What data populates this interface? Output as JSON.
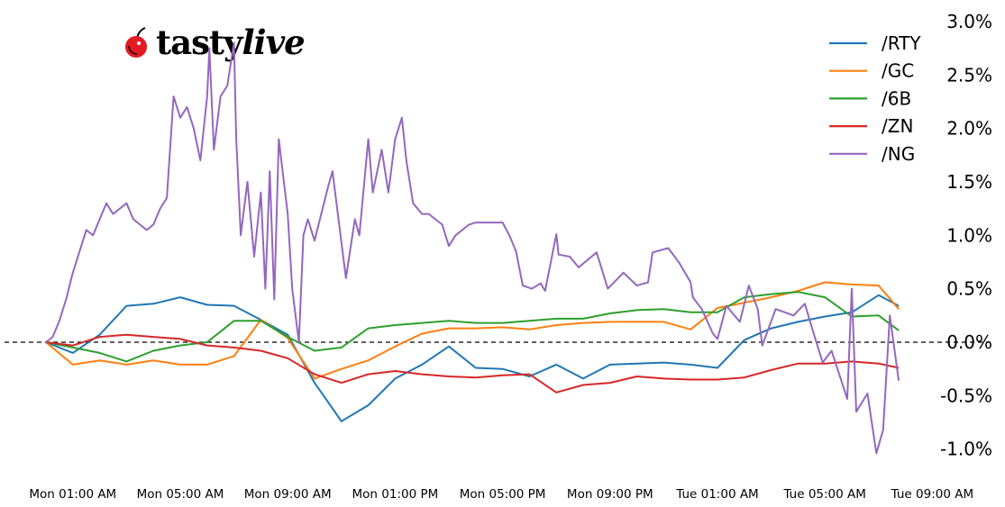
{
  "logo": {
    "text": "tastylive",
    "brand_color": "#e31b23"
  },
  "chart_data": {
    "type": "line",
    "title": "",
    "xlabel": "",
    "ylabel": "",
    "ylim": [
      -1.2,
      3.0
    ],
    "y_unit": "%",
    "grid": false,
    "legend_position": "top-right",
    "reference_line": {
      "value": 0.0,
      "style": "dashed",
      "color": "#000000"
    },
    "yticks": [
      {
        "value": 3.0,
        "label": "3.0%"
      },
      {
        "value": 2.5,
        "label": "2.5%"
      },
      {
        "value": 2.0,
        "label": "2.0%"
      },
      {
        "value": 1.5,
        "label": "1.5%"
      },
      {
        "value": 1.0,
        "label": "1.0%"
      },
      {
        "value": 0.5,
        "label": "0.5%"
      },
      {
        "value": 0.0,
        "label": "0.0%"
      },
      {
        "value": -0.5,
        "label": "-0.5%"
      },
      {
        "value": -1.0,
        "label": "-1.0%"
      }
    ],
    "xticks": [
      {
        "time": "Mon 01:00",
        "label": "Mon 01:00 AM"
      },
      {
        "time": "Mon 05:00",
        "label": "Mon 05:00 AM"
      },
      {
        "time": "Mon 09:00",
        "label": "Mon 09:00 AM"
      },
      {
        "time": "Mon 13:00",
        "label": "Mon 01:00 PM"
      },
      {
        "time": "Mon 17:00",
        "label": "Mon 05:00 PM"
      },
      {
        "time": "Mon 21:00",
        "label": "Mon 09:00 PM"
      },
      {
        "time": "Tue 01:00",
        "label": "Tue 01:00 AM"
      },
      {
        "time": "Tue 05:00",
        "label": "Tue 05:00 AM"
      },
      {
        "time": "Tue 09:00",
        "label": "Tue 09:00 AM"
      }
    ],
    "xlim": [
      "Mon 00:00",
      "Tue 09:00"
    ],
    "series": [
      {
        "name": "/RTY",
        "color": "#1f77b4",
        "points": [
          [
            "Mon 00:00",
            0
          ],
          [
            "Mon 01:00",
            -0.1
          ],
          [
            "Mon 02:00",
            0.07
          ],
          [
            "Mon 03:00",
            0.34
          ],
          [
            "Mon 04:00",
            0.36
          ],
          [
            "Mon 05:00",
            0.42
          ],
          [
            "Mon 06:00",
            0.35
          ],
          [
            "Mon 07:00",
            0.34
          ],
          [
            "Mon 08:00",
            0.21
          ],
          [
            "Mon 09:00",
            0.07
          ],
          [
            "Mon 10:00",
            -0.38
          ],
          [
            "Mon 11:00",
            -0.74
          ],
          [
            "Mon 12:00",
            -0.59
          ],
          [
            "Mon 13:00",
            -0.34
          ],
          [
            "Mon 14:00",
            -0.21
          ],
          [
            "Mon 15:00",
            -0.04
          ],
          [
            "Mon 16:00",
            -0.24
          ],
          [
            "Mon 17:00",
            -0.25
          ],
          [
            "Mon 18:00",
            -0.32
          ],
          [
            "Mon 19:00",
            -0.21
          ],
          [
            "Mon 20:00",
            -0.34
          ],
          [
            "Mon 21:00",
            -0.21
          ],
          [
            "Mon 22:00",
            -0.2
          ],
          [
            "Mon 23:00",
            -0.19
          ],
          [
            "Tue 00:00",
            -0.21
          ],
          [
            "Tue 01:00",
            -0.24
          ],
          [
            "Tue 02:00",
            0.02
          ],
          [
            "Tue 03:00",
            0.13
          ],
          [
            "Tue 04:00",
            0.19
          ],
          [
            "Tue 05:00",
            0.24
          ],
          [
            "Tue 06:00",
            0.28
          ],
          [
            "Tue 07:00",
            0.44
          ],
          [
            "Tue 07:45",
            0.34
          ]
        ]
      },
      {
        "name": "/GC",
        "color": "#ff7f0e",
        "points": [
          [
            "Mon 00:00",
            0
          ],
          [
            "Mon 01:00",
            -0.21
          ],
          [
            "Mon 02:00",
            -0.17
          ],
          [
            "Mon 03:00",
            -0.21
          ],
          [
            "Mon 04:00",
            -0.17
          ],
          [
            "Mon 05:00",
            -0.21
          ],
          [
            "Mon 06:00",
            -0.21
          ],
          [
            "Mon 07:00",
            -0.13
          ],
          [
            "Mon 08:00",
            0.21
          ],
          [
            "Mon 09:00",
            0.04
          ],
          [
            "Mon 10:00",
            -0.34
          ],
          [
            "Mon 11:00",
            -0.25
          ],
          [
            "Mon 12:00",
            -0.17
          ],
          [
            "Mon 13:00",
            -0.04
          ],
          [
            "Mon 14:00",
            0.08
          ],
          [
            "Mon 15:00",
            0.13
          ],
          [
            "Mon 16:00",
            0.13
          ],
          [
            "Mon 17:00",
            0.14
          ],
          [
            "Mon 18:00",
            0.12
          ],
          [
            "Mon 19:00",
            0.16
          ],
          [
            "Mon 20:00",
            0.18
          ],
          [
            "Mon 21:00",
            0.19
          ],
          [
            "Mon 22:00",
            0.19
          ],
          [
            "Mon 23:00",
            0.19
          ],
          [
            "Tue 00:00",
            0.12
          ],
          [
            "Tue 01:00",
            0.32
          ],
          [
            "Tue 02:00",
            0.37
          ],
          [
            "Tue 03:00",
            0.42
          ],
          [
            "Tue 04:00",
            0.48
          ],
          [
            "Tue 05:00",
            0.56
          ],
          [
            "Tue 06:00",
            0.54
          ],
          [
            "Tue 07:00",
            0.53
          ],
          [
            "Tue 07:45",
            0.31
          ]
        ]
      },
      {
        "name": "/6B",
        "color": "#2ca02c",
        "points": [
          [
            "Mon 00:00",
            0
          ],
          [
            "Mon 01:00",
            -0.05
          ],
          [
            "Mon 02:00",
            -0.1
          ],
          [
            "Mon 03:00",
            -0.18
          ],
          [
            "Mon 04:00",
            -0.08
          ],
          [
            "Mon 05:00",
            -0.03
          ],
          [
            "Mon 06:00",
            0.0
          ],
          [
            "Mon 07:00",
            0.2
          ],
          [
            "Mon 08:00",
            0.2
          ],
          [
            "Mon 09:00",
            0.05
          ],
          [
            "Mon 10:00",
            -0.08
          ],
          [
            "Mon 11:00",
            -0.05
          ],
          [
            "Mon 12:00",
            0.13
          ],
          [
            "Mon 13:00",
            0.16
          ],
          [
            "Mon 14:00",
            0.18
          ],
          [
            "Mon 15:00",
            0.2
          ],
          [
            "Mon 16:00",
            0.18
          ],
          [
            "Mon 17:00",
            0.18
          ],
          [
            "Mon 18:00",
            0.2
          ],
          [
            "Mon 19:00",
            0.22
          ],
          [
            "Mon 20:00",
            0.22
          ],
          [
            "Mon 21:00",
            0.27
          ],
          [
            "Mon 22:00",
            0.3
          ],
          [
            "Mon 23:00",
            0.31
          ],
          [
            "Tue 00:00",
            0.28
          ],
          [
            "Tue 01:00",
            0.28
          ],
          [
            "Tue 02:00",
            0.42
          ],
          [
            "Tue 03:00",
            0.45
          ],
          [
            "Tue 04:00",
            0.47
          ],
          [
            "Tue 05:00",
            0.42
          ],
          [
            "Tue 06:00",
            0.24
          ],
          [
            "Tue 07:00",
            0.25
          ],
          [
            "Tue 07:45",
            0.11
          ]
        ]
      },
      {
        "name": "/ZN",
        "color": "#d62728",
        "points": [
          [
            "Mon 00:00",
            0
          ],
          [
            "Mon 01:00",
            -0.03
          ],
          [
            "Mon 02:00",
            0.05
          ],
          [
            "Mon 03:00",
            0.07
          ],
          [
            "Mon 04:00",
            0.05
          ],
          [
            "Mon 05:00",
            0.03
          ],
          [
            "Mon 06:00",
            -0.03
          ],
          [
            "Mon 07:00",
            -0.05
          ],
          [
            "Mon 08:00",
            -0.08
          ],
          [
            "Mon 09:00",
            -0.15
          ],
          [
            "Mon 10:00",
            -0.3
          ],
          [
            "Mon 11:00",
            -0.38
          ],
          [
            "Mon 12:00",
            -0.3
          ],
          [
            "Mon 13:00",
            -0.27
          ],
          [
            "Mon 14:00",
            -0.3
          ],
          [
            "Mon 15:00",
            -0.32
          ],
          [
            "Mon 16:00",
            -0.33
          ],
          [
            "Mon 17:00",
            -0.31
          ],
          [
            "Mon 18:00",
            -0.3
          ],
          [
            "Mon 19:00",
            -0.47
          ],
          [
            "Mon 20:00",
            -0.4
          ],
          [
            "Mon 21:00",
            -0.38
          ],
          [
            "Mon 22:00",
            -0.32
          ],
          [
            "Mon 23:00",
            -0.34
          ],
          [
            "Tue 00:00",
            -0.35
          ],
          [
            "Tue 01:00",
            -0.35
          ],
          [
            "Tue 02:00",
            -0.33
          ],
          [
            "Tue 03:00",
            -0.26
          ],
          [
            "Tue 04:00",
            -0.2
          ],
          [
            "Tue 05:00",
            -0.2
          ],
          [
            "Tue 06:00",
            -0.18
          ],
          [
            "Tue 07:00",
            -0.2
          ],
          [
            "Tue 07:45",
            -0.24
          ]
        ]
      },
      {
        "name": "/NG",
        "color": "#9467bd",
        "points": [
          [
            "Mon 00:00",
            0
          ],
          [
            "Mon 00:15",
            0.05
          ],
          [
            "Mon 00:30",
            0.2
          ],
          [
            "Mon 00:45",
            0.4
          ],
          [
            "Mon 01:00",
            0.65
          ],
          [
            "Mon 01:15",
            0.85
          ],
          [
            "Mon 01:30",
            1.05
          ],
          [
            "Mon 01:45",
            1.0
          ],
          [
            "Mon 02:00",
            1.15
          ],
          [
            "Mon 02:15",
            1.3
          ],
          [
            "Mon 02:30",
            1.2
          ],
          [
            "Mon 02:45",
            1.25
          ],
          [
            "Mon 03:00",
            1.3
          ],
          [
            "Mon 03:15",
            1.15
          ],
          [
            "Mon 03:30",
            1.1
          ],
          [
            "Mon 03:45",
            1.05
          ],
          [
            "Mon 04:00",
            1.1
          ],
          [
            "Mon 04:15",
            1.25
          ],
          [
            "Mon 04:30",
            1.35
          ],
          [
            "Mon 04:45",
            2.3
          ],
          [
            "Mon 05:00",
            2.1
          ],
          [
            "Mon 05:15",
            2.2
          ],
          [
            "Mon 05:30",
            2.0
          ],
          [
            "Mon 05:45",
            1.7
          ],
          [
            "Mon 06:00",
            2.3
          ],
          [
            "Mon 06:05",
            2.75
          ],
          [
            "Mon 06:15",
            1.8
          ],
          [
            "Mon 06:30",
            2.3
          ],
          [
            "Mon 06:45",
            2.4
          ],
          [
            "Mon 07:00",
            2.8
          ],
          [
            "Mon 07:05",
            1.9
          ],
          [
            "Mon 07:15",
            1.0
          ],
          [
            "Mon 07:30",
            1.5
          ],
          [
            "Mon 07:45",
            0.8
          ],
          [
            "Mon 08:00",
            1.4
          ],
          [
            "Mon 08:10",
            0.5
          ],
          [
            "Mon 08:20",
            1.6
          ],
          [
            "Mon 08:30",
            0.4
          ],
          [
            "Mon 08:40",
            1.9
          ],
          [
            "Mon 09:00",
            1.2
          ],
          [
            "Mon 09:10",
            0.5
          ],
          [
            "Mon 09:25",
            0.0
          ],
          [
            "Mon 09:35",
            1.0
          ],
          [
            "Mon 09:45",
            1.15
          ],
          [
            "Mon 10:00",
            0.95
          ],
          [
            "Mon 10:15",
            1.2
          ],
          [
            "Mon 10:30",
            1.45
          ],
          [
            "Mon 10:40",
            1.6
          ],
          [
            "Mon 10:55",
            1.1
          ],
          [
            "Mon 11:10",
            0.6
          ],
          [
            "Mon 11:30",
            1.15
          ],
          [
            "Mon 11:40",
            1.0
          ],
          [
            "Mon 12:00",
            1.9
          ],
          [
            "Mon 12:10",
            1.4
          ],
          [
            "Mon 12:30",
            1.8
          ],
          [
            "Mon 12:45",
            1.4
          ],
          [
            "Mon 13:00",
            1.9
          ],
          [
            "Mon 13:15",
            2.1
          ],
          [
            "Mon 13:25",
            1.7
          ],
          [
            "Mon 13:40",
            1.3
          ],
          [
            "Mon 14:00",
            1.2
          ],
          [
            "Mon 14:15",
            1.2
          ],
          [
            "Mon 14:30",
            1.15
          ],
          [
            "Mon 14:45",
            1.1
          ],
          [
            "Mon 15:00",
            0.9
          ],
          [
            "Mon 15:15",
            1.0
          ],
          [
            "Mon 15:45",
            1.1
          ],
          [
            "Mon 16:00",
            1.12
          ],
          [
            "Mon 17:00",
            1.12
          ],
          [
            "Mon 17:15",
            1.0
          ],
          [
            "Mon 17:30",
            0.85
          ],
          [
            "Mon 17:45",
            0.53
          ],
          [
            "Mon 18:05",
            0.5
          ],
          [
            "Mon 18:25",
            0.55
          ],
          [
            "Mon 18:35",
            0.48
          ],
          [
            "Mon 19:00",
            1.01
          ],
          [
            "Mon 19:05",
            0.82
          ],
          [
            "Mon 19:30",
            0.8
          ],
          [
            "Mon 19:50",
            0.7
          ],
          [
            "Mon 20:30",
            0.84
          ],
          [
            "Mon 20:55",
            0.5
          ],
          [
            "Mon 21:30",
            0.65
          ],
          [
            "Mon 22:00",
            0.53
          ],
          [
            "Mon 22:25",
            0.56
          ],
          [
            "Mon 22:35",
            0.84
          ],
          [
            "Mon 23:10",
            0.88
          ],
          [
            "Mon 23:35",
            0.74
          ],
          [
            "Tue 00:00",
            0.56
          ],
          [
            "Tue 00:05",
            0.42
          ],
          [
            "Tue 00:25",
            0.31
          ],
          [
            "Tue 00:50",
            0.08
          ],
          [
            "Tue 01:00",
            0.03
          ],
          [
            "Tue 01:20",
            0.34
          ],
          [
            "Tue 01:50",
            0.19
          ],
          [
            "Tue 02:10",
            0.53
          ],
          [
            "Tue 02:30",
            0.31
          ],
          [
            "Tue 02:40",
            -0.03
          ],
          [
            "Tue 03:10",
            0.31
          ],
          [
            "Tue 03:50",
            0.25
          ],
          [
            "Tue 04:15",
            0.36
          ],
          [
            "Tue 04:35",
            0.08
          ],
          [
            "Tue 04:55",
            -0.19
          ],
          [
            "Tue 05:15",
            -0.08
          ],
          [
            "Tue 05:50",
            -0.53
          ],
          [
            "Tue 06:00",
            0.5
          ],
          [
            "Tue 06:10",
            -0.65
          ],
          [
            "Tue 06:35",
            -0.48
          ],
          [
            "Tue 06:55",
            -1.04
          ],
          [
            "Tue 07:10",
            -0.82
          ],
          [
            "Tue 07:25",
            0.25
          ],
          [
            "Tue 07:45",
            -0.36
          ]
        ]
      }
    ]
  }
}
